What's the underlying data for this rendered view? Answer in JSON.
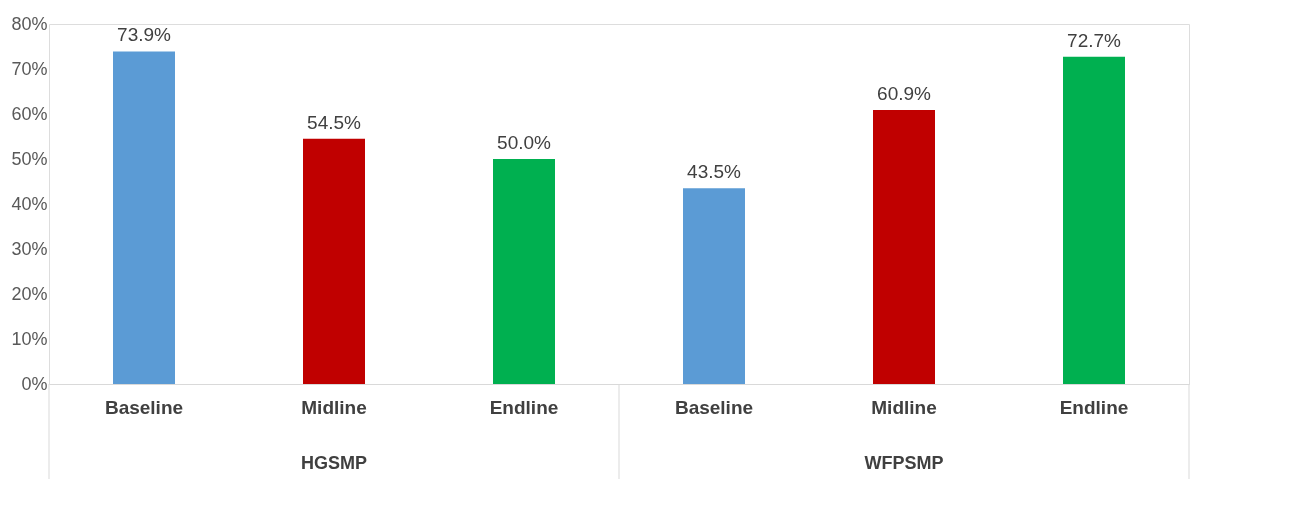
{
  "chart_data": {
    "type": "bar",
    "categories": [
      "Baseline",
      "Midline",
      "Endline",
      "Baseline",
      "Midline",
      "Endline"
    ],
    "values": [
      73.9,
      54.5,
      50.0,
      43.5,
      60.9,
      72.7
    ],
    "colors": [
      "#5b9bd5",
      "#c00000",
      "#00b050",
      "#5b9bd5",
      "#c00000",
      "#00b050"
    ],
    "value_labels": [
      "73.9%",
      "54.5%",
      "50.0%",
      "43.5%",
      "60.9%",
      "72.7%"
    ],
    "ylim": [
      0,
      80
    ],
    "yticks": [
      {
        "value": 0,
        "label": "0%"
      },
      {
        "value": 10,
        "label": "10%"
      },
      {
        "value": 20,
        "label": "20%"
      },
      {
        "value": 30,
        "label": "30%"
      },
      {
        "value": 40,
        "label": "40%"
      },
      {
        "value": 50,
        "label": "50%"
      },
      {
        "value": 60,
        "label": "60%"
      },
      {
        "value": 70,
        "label": "70%"
      },
      {
        "value": 80,
        "label": "80%"
      }
    ],
    "annotations": [
      "HGSMP",
      "WFPSMP"
    ],
    "grid": false
  }
}
